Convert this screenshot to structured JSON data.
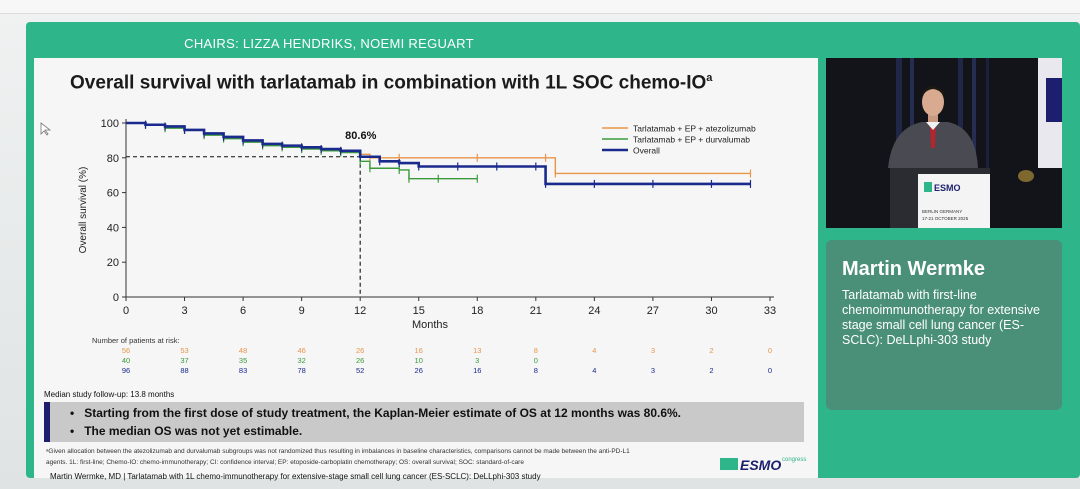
{
  "session": {
    "chairs": "CHAIRS: LIZZA HENDRIKS, NOEMI REGUART"
  },
  "slide": {
    "title": "Overall survival with tarlatamab in combination with 1L SOC chemo-IO",
    "title_sup": "a",
    "annotation_12m": "80.6%",
    "risk_title": "Number of patients at risk:",
    "median_followup": "Median study follow-up: 13.8 months",
    "bullets": [
      "Starting from the first dose of study treatment, the Kaplan-Meier estimate of OS at 12 months was 80.6%.",
      "The median OS was not yet estimable."
    ],
    "footnote_lines": [
      "ᵃGiven allocation between the atezolizumab and durvalumab subgroups was not randomized thus resulting in imbalances in baseline characteristics, comparisons cannot be made between the anti-PD-L1",
      "agents. 1L: first-line; Chemo-IO: chemo-immunotherapy; CI: confidence interval; EP: etoposide-carboplatin chemotherapy; OS: overall survival; SOC: standard-of-care"
    ],
    "footer": "Martin Wermke, MD | Tarlatamab with 1L chemo-immunotherapy for extensive-stage small cell lung cancer (ES-SCLC): DeLLphi-303 study",
    "esmo_text": "ESMO",
    "esmo_congress": "congress"
  },
  "chart_data": {
    "type": "line",
    "xlabel": "Months",
    "ylabel": "Overall survival (%)",
    "xlim": [
      0,
      33
    ],
    "ylim": [
      0,
      100
    ],
    "xticks": [
      0,
      3,
      6,
      9,
      12,
      15,
      18,
      21,
      24,
      27,
      30,
      33
    ],
    "yticks": [
      0,
      20,
      40,
      60,
      80,
      100
    ],
    "legend_position": "top-right",
    "reference": {
      "x": 12,
      "y": 80.6,
      "label": "80.6%"
    },
    "series": [
      {
        "name": "Tarlatamab + EP + atezolizumab",
        "color": "#e8954a",
        "x": [
          0,
          1,
          2,
          3,
          4,
          5,
          6,
          7,
          8,
          9,
          10,
          11,
          12,
          12.5,
          14,
          18,
          21.5,
          22,
          32
        ],
        "y": [
          100,
          99,
          98,
          96,
          94,
          92,
          90,
          88,
          87,
          86,
          85,
          84,
          82,
          80,
          80,
          80,
          80,
          71,
          71
        ]
      },
      {
        "name": "Tarlatamab + EP + durvalumab",
        "color": "#3c9a3c",
        "x": [
          0,
          1,
          2,
          3,
          4,
          5,
          6,
          7,
          8,
          9,
          10,
          11,
          12,
          12.5,
          14,
          14.5,
          16,
          18
        ],
        "y": [
          100,
          99,
          97,
          96,
          93,
          91,
          89,
          87,
          86,
          85,
          84,
          83,
          78,
          74,
          73,
          68,
          68,
          68
        ]
      },
      {
        "name": "Overall",
        "color": "#1a2a8c",
        "x": [
          0,
          1,
          2,
          3,
          4,
          5,
          6,
          7,
          8,
          9,
          10,
          11,
          12,
          13,
          14,
          15,
          17,
          19,
          21,
          21.5,
          24,
          27,
          30,
          32
        ],
        "y": [
          100,
          99,
          98,
          96,
          94,
          92,
          90,
          88,
          87,
          86,
          85,
          84,
          80.6,
          78,
          77,
          75,
          75,
          75,
          75,
          65,
          65,
          65,
          65,
          65
        ]
      }
    ],
    "at_risk": [
      {
        "color": "#e8954a",
        "values": [
          "56",
          "53",
          "48",
          "46",
          "26",
          "16",
          "13",
          "8",
          "4",
          "3",
          "2",
          "0"
        ]
      },
      {
        "color": "#3c9a3c",
        "values": [
          "40",
          "37",
          "35",
          "32",
          "26",
          "10",
          "3",
          "0",
          "",
          "",
          "",
          ""
        ]
      },
      {
        "color": "#1a2a8c",
        "values": [
          "96",
          "88",
          "83",
          "78",
          "52",
          "26",
          "16",
          "8",
          "4",
          "3",
          "2",
          "0"
        ]
      }
    ]
  },
  "speaker": {
    "name": "Martin Wermke",
    "talk_title": "Tarlatamab with first-line chemoimmunotherapy for extensive stage small cell lung cancer (ES-SCLC): DeLLphi-303 study",
    "podium_brand": "ESMO",
    "podium_location": "BERLIN GERMANY",
    "podium_dates": "17-21 OCTOBER 2025"
  }
}
